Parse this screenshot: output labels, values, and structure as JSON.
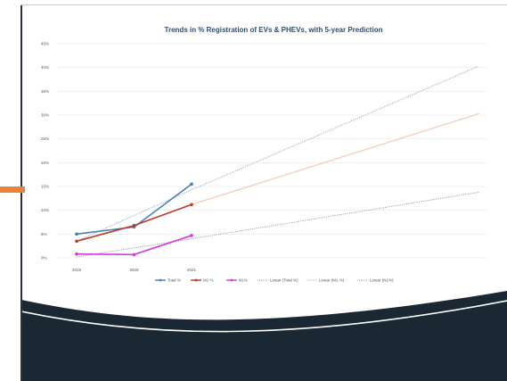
{
  "colors": {
    "accent": "#e8833a",
    "footer_dark": "#1b2733",
    "total_series": "#4a7eb5",
    "m1_series": "#c0392b",
    "n1_series": "#d63ad9",
    "trend_total": "#8aa3be",
    "trend_m1": "#f6c4a6",
    "trend_n1": "#8a9bb0"
  },
  "chart_data": {
    "type": "line",
    "title": "Trends in % Registration of EVs & PHEVs, with 5-year Prediction",
    "x": [
      2019,
      2020,
      2021
    ],
    "x_tick_labels": [
      "2019",
      "2020",
      "2021"
    ],
    "xlim": [
      2019,
      2026
    ],
    "ylim": [
      0,
      45
    ],
    "y_ticks": [
      0,
      5,
      10,
      15,
      20,
      25,
      30,
      35,
      40,
      45
    ],
    "y_tick_labels": [
      "0%",
      "5%",
      "10%",
      "15%",
      "20%",
      "25%",
      "30%",
      "35%",
      "40%",
      "45%"
    ],
    "grid": true,
    "legend_position": "bottom",
    "series": [
      {
        "name": "Total %",
        "values": [
          5.0,
          6.5,
          15.5
        ],
        "color": "#4a7eb5",
        "style": "solid-marker"
      },
      {
        "name": "M1 %",
        "values": [
          3.5,
          6.8,
          11.2
        ],
        "color": "#c0392b",
        "style": "solid-marker"
      },
      {
        "name": "N1%",
        "values": [
          0.8,
          0.7,
          4.7
        ],
        "color": "#d63ad9",
        "style": "solid-marker"
      }
    ],
    "trendlines": [
      {
        "name": "Linear (Total %)",
        "x": [
          2019,
          2021,
          2026
        ],
        "values": [
          3.5,
          14.3,
          40.3
        ],
        "color": "#8aa3be",
        "style": "dotted",
        "dash_from_x": 2021
      },
      {
        "name": "Linear (M1 %)",
        "x": [
          2021,
          2026
        ],
        "values": [
          11.2,
          30.3
        ],
        "color": "#f6c4a6",
        "style": "solid-light"
      },
      {
        "name": "Linear (N1%)",
        "x": [
          2019,
          2021,
          2026
        ],
        "values": [
          0.2,
          4.0,
          13.8
        ],
        "color": "#8a9bb0",
        "style": "dotted"
      }
    ]
  }
}
